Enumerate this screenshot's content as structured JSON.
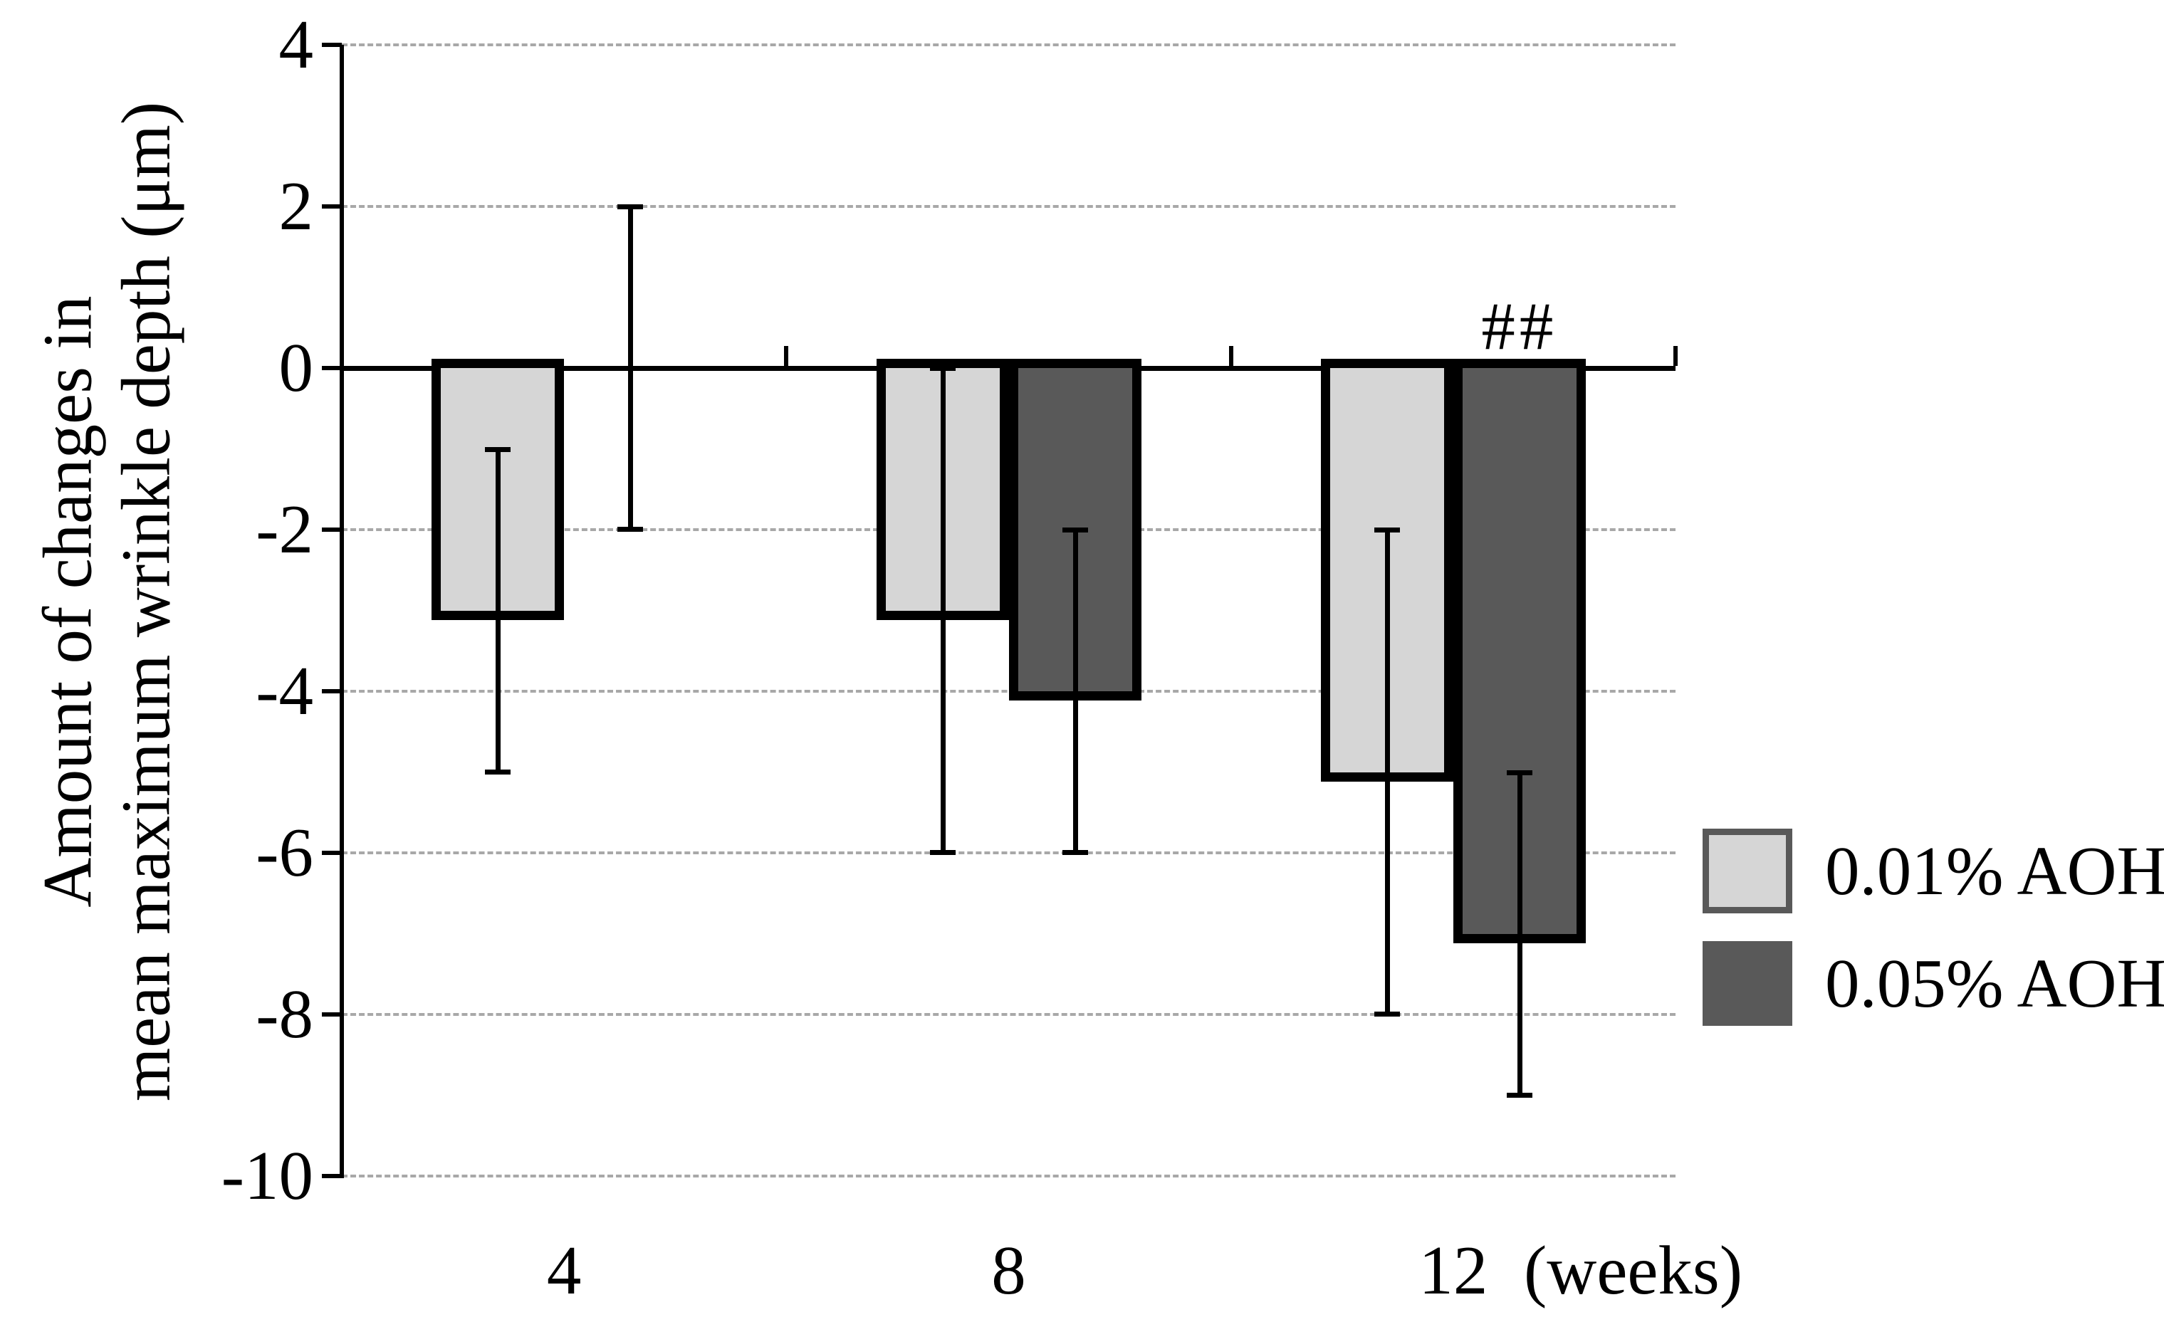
{
  "y_axis": {
    "title_line1": "Amount of changes in",
    "title_line2": "mean maximum wrinkle depth (μm)",
    "ticks": [
      4,
      2,
      0,
      -2,
      -4,
      -6,
      -8,
      -10
    ]
  },
  "x_axis": {
    "categories": [
      "4",
      "8",
      "12"
    ],
    "unit_label": "(weeks)"
  },
  "legend": {
    "entries": [
      {
        "swatch_fill": "#d6d6d6",
        "swatch_border": "#595959"
      },
      {
        "swatch_fill": "#595959",
        "swatch_border": "#595959"
      }
    ]
  },
  "colors": {
    "axis": "#000000",
    "gridline": "#a8a8a8",
    "bar_outline": "#000000",
    "error_bar": "#000000",
    "light_series": "#d6d6d6",
    "dark_series": "#595959"
  },
  "chart_data": {
    "type": "bar",
    "title": "",
    "xlabel": "(weeks)",
    "ylabel": "Amount of changes in mean maximum wrinkle depth (μm)",
    "ylim": [
      -10,
      4
    ],
    "ytick_step": 2,
    "grid": "horizontal dashed at every tick, solid black line at 0",
    "legend_position": "right",
    "categories": [
      4,
      8,
      12
    ],
    "series": [
      {
        "name": "0.01% AOH",
        "color": "#d6d6d6",
        "values": [
          -3,
          -3,
          -5
        ],
        "error_top": [
          -1,
          0,
          -2
        ],
        "error_bottom": [
          -5,
          -6,
          -8
        ]
      },
      {
        "name": "0.05% AOH",
        "color": "#595959",
        "values": [
          0,
          -4,
          -7
        ],
        "error_top": [
          2,
          -2,
          -5
        ],
        "error_bottom": [
          -2,
          -6,
          -9
        ]
      }
    ],
    "annotations": [
      {
        "text": "##",
        "category_index": 2,
        "series_index": 1,
        "meaning": "significance marker above 0.05% AOH bar at week 12"
      }
    ]
  }
}
